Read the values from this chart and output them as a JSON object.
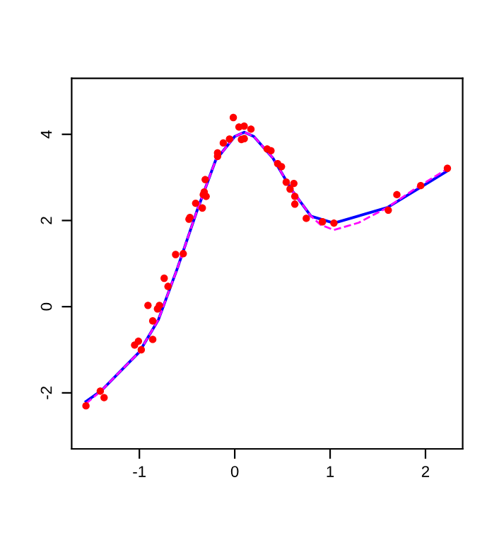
{
  "chart_data": {
    "type": "scatter",
    "xlim": [
      -1.71,
      2.39
    ],
    "ylim": [
      -3.3,
      5.3
    ],
    "xticks": [
      -1,
      0,
      1,
      2
    ],
    "yticks": [
      -2,
      0,
      2,
      4
    ],
    "grid": false,
    "series": [
      {
        "marker": "circle",
        "color": "#ff0000",
        "x": [
          -0.015,
          0.044,
          0.099,
          0.17,
          0.07,
          0.1,
          -0.055,
          -0.12,
          -0.18,
          -0.18,
          -0.31,
          -0.32,
          -0.3,
          -0.33,
          -0.34,
          -0.41,
          -0.47,
          -0.48,
          -0.54,
          -0.62,
          0.34,
          0.38,
          0.45,
          0.49,
          0.54,
          0.62,
          0.58,
          0.63,
          0.63,
          0.75,
          0.92,
          1.04,
          1.61,
          1.7,
          1.95,
          2.23,
          -1.56,
          -1.41,
          -1.37,
          -1.05,
          -1.01,
          -0.98,
          -0.86,
          -0.91,
          -0.86,
          -0.81,
          -0.79,
          -0.74,
          -0.7
        ],
        "values": [
          4.39,
          4.17,
          4.19,
          4.12,
          3.88,
          3.9,
          3.89,
          3.8,
          3.57,
          3.49,
          2.95,
          2.66,
          2.56,
          2.6,
          2.29,
          2.4,
          2.07,
          2.03,
          1.23,
          1.21,
          3.66,
          3.62,
          3.32,
          3.25,
          2.89,
          2.86,
          2.73,
          2.56,
          2.38,
          2.05,
          1.97,
          1.94,
          2.24,
          2.6,
          2.81,
          3.21,
          -2.3,
          -1.96,
          -2.11,
          -0.89,
          -0.8,
          -1.0,
          -0.76,
          0.03,
          -0.33,
          -0.05,
          0.03,
          0.66,
          0.47
        ]
      },
      {
        "type": "line",
        "line_style": "dashed",
        "color": "#ff00ff",
        "x": [
          -1.56,
          -1.4,
          -1.0,
          -0.8,
          -0.6,
          -0.4,
          -0.2,
          0.0,
          0.1,
          0.2,
          0.4,
          0.6,
          0.8,
          0.9,
          1.04,
          1.3,
          1.6,
          1.9,
          2.23
        ],
        "values": [
          -2.25,
          -1.95,
          -1.05,
          -0.3,
          0.9,
          2.2,
          3.4,
          3.95,
          4.05,
          3.95,
          3.45,
          2.7,
          2.1,
          1.9,
          1.78,
          1.95,
          2.3,
          2.75,
          3.2
        ]
      },
      {
        "type": "line",
        "line_style": "solid",
        "color": "#0000ff",
        "x": [
          -1.56,
          -1.4,
          -1.0,
          -0.8,
          -0.6,
          -0.4,
          -0.2,
          0.0,
          0.1,
          0.2,
          0.4,
          0.6,
          0.8,
          1.04,
          1.6,
          2.23
        ],
        "values": [
          -2.2,
          -1.95,
          -1.05,
          -0.3,
          0.9,
          2.2,
          3.4,
          3.95,
          4.05,
          3.95,
          3.45,
          2.7,
          2.1,
          1.94,
          2.3,
          3.15
        ]
      }
    ]
  }
}
